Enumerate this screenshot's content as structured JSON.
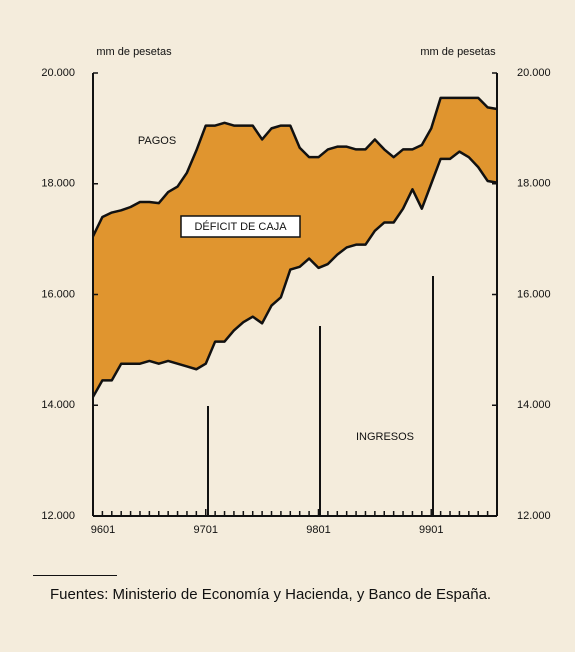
{
  "chart_data": {
    "type": "area_band",
    "ylabel": "mm de pesetas",
    "y2label": "mm de pesetas",
    "categories": [
      "9601",
      null,
      null,
      null,
      null,
      null,
      null,
      null,
      null,
      null,
      null,
      null,
      "9701",
      null,
      null,
      null,
      null,
      null,
      null,
      null,
      null,
      null,
      null,
      null,
      "9801",
      null,
      null,
      null,
      null,
      null,
      null,
      null,
      null,
      null,
      null,
      null,
      "9901",
      null,
      null,
      null,
      null,
      null,
      null,
      null
    ],
    "series": [
      {
        "name": "PAGOS",
        "color": "#111111",
        "values": [
          17050,
          17400,
          17480,
          17520,
          17580,
          17670,
          17670,
          17650,
          17850,
          17950,
          18200,
          18600,
          19050,
          19050,
          19100,
          19050,
          19050,
          19050,
          18800,
          19000,
          19050,
          19050,
          18650,
          18480,
          18480,
          18620,
          18670,
          18670,
          18620,
          18620,
          18800,
          18620,
          18480,
          18620,
          18620,
          18700,
          19000,
          19550,
          19550,
          19550,
          19550,
          19550,
          19380,
          19350
        ]
      },
      {
        "name": "INGRESOS",
        "color": "#111111",
        "values": [
          14150,
          14450,
          14450,
          14750,
          14750,
          14750,
          14800,
          14750,
          14800,
          14750,
          14700,
          14650,
          14750,
          15150,
          15150,
          15350,
          15500,
          15600,
          15480,
          15800,
          15950,
          16450,
          16500,
          16650,
          16480,
          16550,
          16720,
          16850,
          16900,
          16900,
          17150,
          17300,
          17300,
          17550,
          17900,
          17550,
          18000,
          18450,
          18450,
          18580,
          18480,
          18300,
          18050,
          18020
        ]
      }
    ],
    "fill_color": "#e0952f",
    "annotations": [
      "DÉFICIT DE CAJA"
    ],
    "ylim": [
      12000,
      20000
    ],
    "yticks": [
      {
        "value": 12000,
        "label": "12.000"
      },
      {
        "value": 14000,
        "label": "14.000"
      },
      {
        "value": 16000,
        "label": "16.000"
      },
      {
        "value": 18000,
        "label": "18.000"
      },
      {
        "value": 20000,
        "label": "20.000"
      }
    ],
    "y2lim": [
      12000,
      20000
    ],
    "y2ticks": [
      {
        "value": 12000,
        "label": "12.000"
      },
      {
        "value": 14000,
        "label": "14.000"
      },
      {
        "value": 16000,
        "label": "16.000"
      },
      {
        "value": 18000,
        "label": "18.000"
      },
      {
        "value": 20000,
        "label": "20.000"
      }
    ]
  },
  "footer": {
    "source": "Fuentes: Ministerio de Economía y Hacienda, y Banco de España."
  }
}
